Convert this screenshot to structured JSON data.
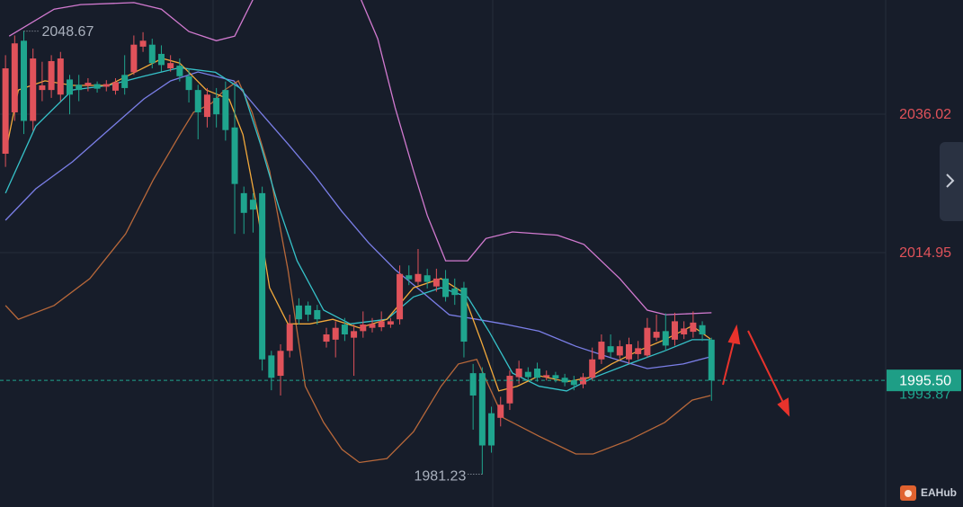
{
  "chart_data": {
    "type": "candlestick",
    "up_color": "#e0525a",
    "down_color": "#1fa58e",
    "xlim": [
      -0.6,
      96
    ],
    "ylim": [
      1976.23,
      2053.4
    ],
    "yticks": [
      2036.02,
      2014.95
    ],
    "grid": true,
    "open": [
      2030,
      2036.3,
      2047.2,
      2035,
      2039.7,
      2039.7,
      2039,
      2041.3,
      2040.5,
      2040.4,
      2040.6,
      2040.2,
      2039.6,
      2042,
      2042.4,
      2046.3,
      2046.6,
      2045.2,
      2043,
      2043.4,
      2041.8,
      2039.7,
      2035.6,
      2038.5,
      2039.7,
      2034,
      2024,
      2023,
      2024,
      1999.3,
      1996.2,
      2000,
      2006.9,
      2006.9,
      2006.2,
      2001.4,
      2001.7,
      2004,
      2002,
      2003,
      2003.5,
      2003.6,
      2004,
      2004.8,
      2011.5,
      2010.5,
      2011.5,
      2009.8,
      2011,
      2009.5,
      2009.6,
      1996.6,
      1996.6,
      1990.5,
      1989.8,
      1992,
      1996,
      1996.8,
      1997.3,
      1996,
      1996.3,
      1995.9,
      1995.5,
      1994.9,
      1995.9,
      1998.7,
      2000.7,
      1999.3,
      1998.7,
      1999.5,
      1999.3,
      2002,
      2003,
      2001.7,
      2002.5,
      2002.9,
      2003.9,
      2001.7
    ],
    "high": [
      2045,
      2048,
      2048.67,
      2046,
      2044,
      2045,
      2045.5,
      2042,
      2042,
      2041.5,
      2041,
      2041.2,
      2041.5,
      2045,
      2048,
      2048.5,
      2047.5,
      2046.5,
      2045,
      2044.5,
      2043,
      2040.5,
      2040,
      2040,
      2041,
      2040.4,
      2025,
      2024,
      2025,
      2000,
      2001,
      2005.5,
      2008,
      2007.5,
      2007,
      2003.5,
      2004.5,
      2005,
      2004,
      2006,
      2005,
      2006,
      2005,
      2013,
      2013,
      2015.5,
      2012.5,
      2012.5,
      2012.3,
      2011,
      2010.5,
      1998,
      1997.5,
      1991.5,
      1993,
      1997,
      1998.5,
      1997.5,
      1998.2,
      1997,
      1996.8,
      1996.5,
      1996.2,
      1996.6,
      2000.5,
      2002.5,
      2002.5,
      2001.6,
      2002,
      2001.5,
      2005,
      2005.5,
      2005.7,
      2005.8,
      2004.5,
      2006,
      2004.5,
      2002
    ],
    "low": [
      2028,
      2035,
      2033,
      2033.5,
      2038,
      2038.5,
      2038,
      2036,
      2038,
      2039.5,
      2039.3,
      2039.5,
      2039,
      2039,
      2042,
      2045.5,
      2043,
      2042.5,
      2042.5,
      2041,
      2037.8,
      2032.2,
      2034,
      2034,
      2032,
      2017.8,
      2017.8,
      2018,
      1997,
      1994,
      1993.2,
      1999,
      2004,
      2004.5,
      2004,
      2000.5,
      1999,
      2001.5,
      1996.2,
      2002,
      2002.8,
      2003,
      2003.5,
      2004,
      2010,
      2010,
      2009.5,
      2009,
      2007.5,
      2007,
      1999,
      1988,
      1981.23,
      1984.5,
      1988.5,
      1991,
      1995,
      1995.5,
      1995.3,
      1995.5,
      1995.2,
      1994.6,
      1994,
      1994.3,
      1995.5,
      1998,
      1999,
      1998.8,
      1998,
      1998.7,
      1999,
      2001.5,
      2000,
      2000.8,
      2001.8,
      2002,
      2001.5,
      1992.4
    ],
    "close": [
      2043,
      2046.8,
      2035,
      2044.5,
      2040.4,
      2044.1,
      2044.5,
      2039,
      2039.7,
      2040.8,
      2039.9,
      2040.6,
      2040.9,
      2040,
      2046.6,
      2047.2,
      2043.8,
      2043.5,
      2043.8,
      2041.8,
      2039.7,
      2036.3,
      2039,
      2036,
      2033.6,
      2025.4,
      2021,
      2021.5,
      1998.7,
      1995.9,
      2000,
      2004.1,
      2004.8,
      2005.5,
      2004.8,
      2002.5,
      2003.5,
      2002.5,
      2003,
      2004,
      2004.1,
      2004.5,
      2004.5,
      2011.7,
      2010.9,
      2011.7,
      2010.5,
      2011,
      2008.2,
      2008.5,
      2001.4,
      1993.2,
      1985.6,
      1985.6,
      1991.8,
      1996.2,
      1997.3,
      1996,
      1995.9,
      1996.3,
      1995.8,
      1995.2,
      1994.8,
      1996,
      1998.7,
      2001.4,
      1999.8,
      2000.7,
      2001,
      2000.4,
      2003.5,
      2002.9,
      2000.8,
      2004.5,
      2003.4,
      2004.3,
      2002.5,
      1995.5
    ],
    "overlays": [
      {
        "color": "#d27ad0",
        "x": [
          0.4,
          5.3,
          8.2,
          14,
          17,
          20,
          23,
          25,
          27,
          29,
          38,
          40.6,
          42.5,
          44.5,
          46,
          48,
          50.4,
          52.4,
          55.3,
          60.2,
          63.1,
          67,
          70,
          72,
          77
        ],
        "values": [
          2047.9,
          2052,
          2052.7,
          2053,
          2052,
          2048.6,
          2047.2,
          2047.9,
          2053.5,
          2056,
          2056,
          2047.5,
          2037,
          2027.4,
          2020.6,
          2013.7,
          2013.7,
          2017.1,
          2018.1,
          2017.6,
          2016.2,
          2011,
          2006.2,
          2005.5,
          2005.8
        ]
      },
      {
        "color": "#7b7fe8",
        "x": [
          0,
          3.3,
          7.3,
          11.2,
          15.1,
          18,
          21,
          24.9,
          27.8,
          30.8,
          33.7,
          36.7,
          39.6,
          42.5,
          45.5,
          48.4,
          51.4,
          54.3,
          58.2,
          62.2,
          66.1,
          70,
          73.9,
          76.9
        ],
        "values": [
          2019.88,
          2024.66,
          2028.77,
          2033.56,
          2038.35,
          2041.08,
          2042.45,
          2041.08,
          2036.3,
          2031.5,
          2026.7,
          2021.2,
          2016.45,
          2012.35,
          2008.9,
          2005.5,
          2004.8,
          2004.1,
          2003,
          2000.7,
          1998.9,
          1997.3,
          1998,
          1999.1
        ]
      },
      {
        "color": "#b8683a",
        "x": [
          0,
          1.4,
          5.3,
          9.2,
          13.1,
          16.1,
          19,
          20.5,
          22.5,
          23.9,
          25.4,
          26.9,
          28.8,
          30.8,
          32.7,
          34.7,
          36.7,
          38.6,
          41.6,
          44.5,
          47.5,
          49.4,
          51.4,
          54.3,
          58.2,
          62.2,
          64.1,
          68,
          71.9,
          74.9,
          76.9
        ],
        "values": [
          2006.9,
          2004.8,
          2006.9,
          2011,
          2017.8,
          2026,
          2032.9,
          2036.3,
          2037.7,
          2039.7,
          2041.1,
          2036.3,
          2027.4,
          2012.4,
          1994.6,
          1989.1,
          1985,
          1983,
          1983.6,
          1987.7,
          1994.6,
          1998,
          1998.7,
          1989.8,
          1987,
          1984.3,
          1984.3,
          1986.4,
          1989.1,
          1992.5,
          1993.2
        ]
      },
      {
        "color": "#36c2c9",
        "x": [
          0,
          3.3,
          7.3,
          11.2,
          15.1,
          19,
          22.9,
          25.9,
          27.8,
          29.8,
          31.8,
          34.7,
          37.6,
          41.6,
          44.5,
          47.5,
          50.4,
          52.8,
          55.3,
          58.2,
          61.2,
          64.1,
          68,
          71.9,
          74.9,
          76.9
        ],
        "values": [
          2024,
          2034.2,
          2039.7,
          2040.4,
          2041.8,
          2043.1,
          2042.4,
          2039.7,
          2031.5,
          2021.9,
          2013.7,
          2006.2,
          2004.1,
          2004.8,
          2008.2,
          2009.6,
          2008.2,
          2002.8,
          1996.6,
          1994.6,
          1993.9,
          1995.9,
          1998,
          2000,
          2001.7,
          2001.7
        ]
      },
      {
        "color": "#f2a93b",
        "x": [
          0,
          1.4,
          4.3,
          7.3,
          11.2,
          14.1,
          17.1,
          19,
          21.9,
          24.4,
          25.9,
          27.4,
          28.8,
          30.8,
          33.2,
          35.7,
          38.6,
          41.6,
          44.5,
          47.5,
          49.9,
          51.9,
          53.8,
          55.8,
          58.2,
          61.2,
          63.6,
          66.1,
          69,
          71.9,
          74.9,
          76.9
        ],
        "values": [
          2030.1,
          2039.7,
          2041.1,
          2040.4,
          2040.4,
          2042.4,
          2044.5,
          2043.8,
          2039.7,
          2038.3,
          2032.9,
          2021.9,
          2009.6,
          2004.1,
          2004.1,
          2004.8,
          2003.5,
          2004.8,
          2009.6,
          2011,
          2008.9,
          2001.4,
          1993.9,
          1994.6,
          1996.2,
          1995.3,
          1995.9,
          1998,
          2000,
          2001.7,
          2003.8,
          2001.8
        ]
      }
    ],
    "high_marker": 2048.67,
    "low_marker": 1981.23,
    "last_price": {
      "value": 1995.5,
      "label": "1995.50"
    },
    "secondary_price": 1993.87,
    "watermark": "EAHub"
  }
}
